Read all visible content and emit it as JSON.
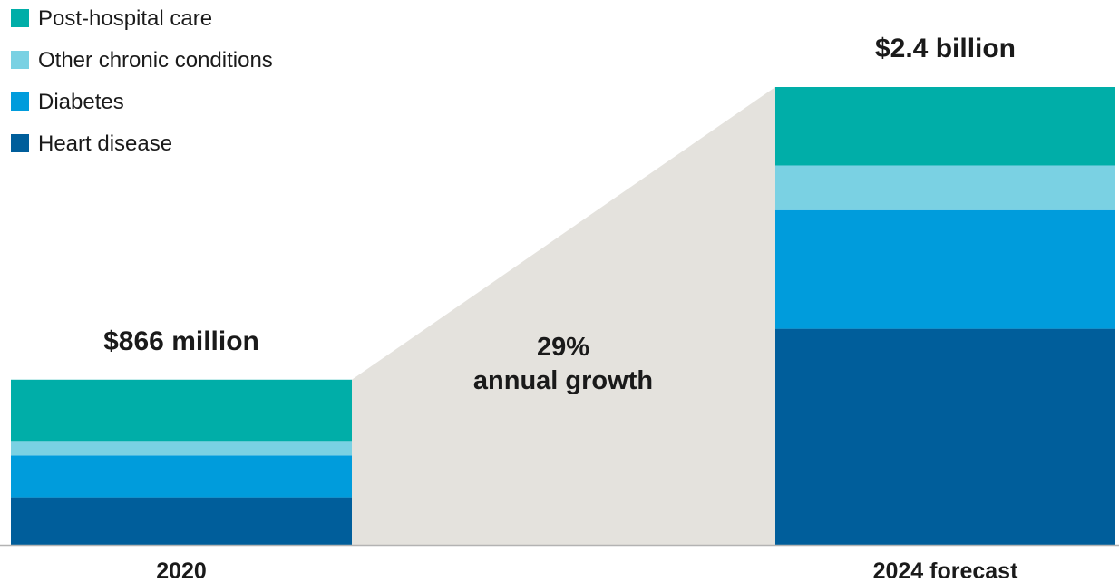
{
  "chart_data": {
    "type": "bar",
    "stacked": true,
    "categories": [
      "2020",
      "2024 forecast"
    ],
    "unit": "USD",
    "series": [
      {
        "name": "Heart disease",
        "color": "#005e9b",
        "values": [
          249,
          1133
        ]
      },
      {
        "name": "Diabetes",
        "color": "#009cdc",
        "values": [
          220,
          622
        ]
      },
      {
        "name": "Other chronic conditions",
        "color": "#7ad1e3",
        "values": [
          76,
          234
        ]
      },
      {
        "name": "Post-hospital care",
        "color": "#00aea8",
        "values": [
          321,
          411
        ]
      }
    ],
    "totals": [
      {
        "category": "2020",
        "value": 866,
        "label": "$866 million"
      },
      {
        "category": "2024 forecast",
        "value": 2400,
        "label": "$2.4 billion"
      }
    ],
    "annotation": {
      "line1": "29%",
      "line2": "annual growth",
      "color": "#e4e2dd"
    },
    "ylim": [
      0,
      2400
    ],
    "legend_position": "top-left",
    "legend": [
      "Post-hospital care",
      "Other chronic conditions",
      "Diabetes",
      "Heart disease"
    ],
    "grid": false,
    "axis_color": "#b3b3b3"
  }
}
